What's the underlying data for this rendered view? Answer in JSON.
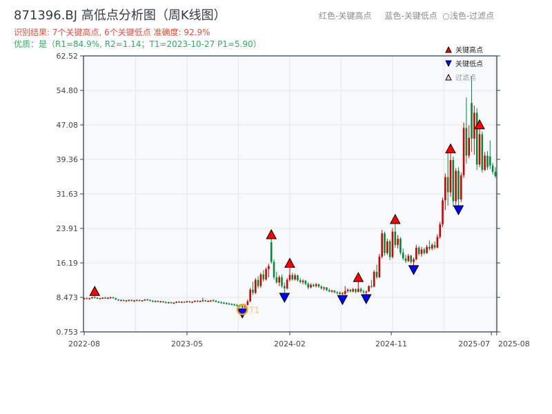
{
  "title": "871396.BJ 高低点分析图（周K线图）",
  "summary": "识别结果: 7个关键高点, 6个关键低点  准确度: 92.9%",
  "quality": "优质：是（R1=84.9%, R2=1.14；T1=2023-10-27 P1=5.90）",
  "top_legend": "红色-关键高点     蓝色-关键低点  ○浅色-过滤点",
  "colors": {
    "up": "#d40000",
    "down": "#008a3a",
    "high_marker": "#ff0000",
    "low_marker": "#0000ff",
    "t1_circle": "#f39c12",
    "grid": "#e3e6ea",
    "plot_bg": "#f7f9fb",
    "axis": "#2c3e50"
  },
  "chart_data": {
    "type": "candlestick",
    "interval": "weekly",
    "yticks": [
      "62.52",
      "54.80",
      "47.08",
      "39.36",
      "31.63",
      "23.91",
      "16.19",
      "8.473",
      "0.753"
    ],
    "ylim": [
      0.753,
      62.52
    ],
    "xticks": [
      {
        "label": "2022-08",
        "week": 0
      },
      {
        "label": "2023-05",
        "week": 39
      },
      {
        "label": "2024-02",
        "week": 78
      },
      {
        "label": "2024-11",
        "week": 116.5
      },
      {
        "label": "2025-07",
        "week": 154.5
      },
      {
        "label": "2025-08",
        "week": 156.5
      }
    ],
    "legend": [
      {
        "label": "关键高点",
        "marker": "triangle-up-red"
      },
      {
        "label": "关键低点",
        "marker": "triangle-down-blue"
      },
      {
        "label": "过滤点",
        "marker": "triangle-up-light"
      }
    ],
    "legend_position": "top-right",
    "t1_label": "T1",
    "t1_index": 60,
    "key_highs": [
      4,
      71,
      78,
      104,
      118,
      139,
      150
    ],
    "key_lows": [
      60,
      76,
      98,
      107,
      125,
      142
    ],
    "ohlc": [
      [
        8.1,
        8.4,
        8.0,
        8.3
      ],
      [
        8.3,
        8.5,
        8.1,
        8.2
      ],
      [
        8.2,
        8.4,
        8.0,
        8.3
      ],
      [
        8.3,
        8.6,
        8.2,
        8.5
      ],
      [
        8.5,
        8.9,
        8.3,
        8.4
      ],
      [
        8.4,
        8.5,
        8.1,
        8.2
      ],
      [
        8.2,
        8.4,
        8.1,
        8.3
      ],
      [
        8.3,
        8.5,
        8.2,
        8.4
      ],
      [
        8.4,
        8.6,
        8.2,
        8.3
      ],
      [
        8.3,
        8.5,
        8.1,
        8.4
      ],
      [
        8.4,
        8.6,
        8.2,
        8.5
      ],
      [
        8.5,
        8.6,
        8.2,
        8.3
      ],
      [
        8.3,
        8.4,
        7.9,
        8.0
      ],
      [
        8.0,
        8.1,
        7.7,
        7.8
      ],
      [
        7.8,
        8.0,
        7.6,
        7.9
      ],
      [
        7.9,
        8.0,
        7.6,
        7.7
      ],
      [
        7.7,
        7.9,
        7.5,
        7.8
      ],
      [
        7.8,
        8.0,
        7.6,
        7.9
      ],
      [
        7.9,
        8.0,
        7.6,
        7.7
      ],
      [
        7.7,
        7.9,
        7.5,
        7.8
      ],
      [
        7.8,
        8.0,
        7.7,
        7.9
      ],
      [
        7.9,
        8.0,
        7.6,
        7.7
      ],
      [
        7.7,
        7.9,
        7.6,
        7.8
      ],
      [
        7.8,
        8.1,
        7.7,
        8.0
      ],
      [
        8.0,
        8.2,
        7.8,
        7.9
      ],
      [
        7.9,
        8.0,
        7.6,
        7.7
      ],
      [
        7.7,
        7.9,
        7.5,
        7.6
      ],
      [
        7.6,
        7.8,
        7.4,
        7.7
      ],
      [
        7.7,
        7.8,
        7.4,
        7.5
      ],
      [
        7.5,
        7.7,
        7.3,
        7.6
      ],
      [
        7.6,
        7.7,
        7.3,
        7.4
      ],
      [
        7.4,
        7.6,
        7.2,
        7.3
      ],
      [
        7.3,
        7.5,
        7.1,
        7.4
      ],
      [
        7.4,
        7.5,
        7.1,
        7.2
      ],
      [
        7.2,
        7.4,
        7.0,
        7.3
      ],
      [
        7.3,
        7.6,
        7.2,
        7.5
      ],
      [
        7.5,
        7.7,
        7.3,
        7.4
      ],
      [
        7.4,
        7.6,
        7.2,
        7.5
      ],
      [
        7.5,
        7.6,
        7.3,
        7.4
      ],
      [
        7.4,
        7.7,
        7.3,
        7.6
      ],
      [
        7.6,
        7.7,
        7.3,
        7.4
      ],
      [
        7.4,
        7.6,
        7.2,
        7.5
      ],
      [
        7.5,
        7.8,
        7.4,
        7.7
      ],
      [
        7.7,
        7.9,
        7.5,
        7.6
      ],
      [
        7.6,
        7.8,
        7.4,
        7.7
      ],
      [
        7.7,
        8.4,
        7.6,
        7.8
      ],
      [
        7.8,
        7.9,
        7.5,
        7.6
      ],
      [
        7.6,
        7.8,
        7.4,
        7.7
      ],
      [
        7.7,
        7.9,
        7.5,
        7.8
      ],
      [
        7.8,
        8.1,
        7.6,
        7.7
      ],
      [
        7.7,
        7.9,
        7.4,
        7.5
      ],
      [
        7.5,
        7.7,
        7.2,
        7.4
      ],
      [
        7.4,
        7.6,
        7.1,
        7.3
      ],
      [
        7.3,
        7.5,
        7.0,
        7.2
      ],
      [
        7.2,
        7.4,
        6.9,
        7.1
      ],
      [
        7.1,
        7.3,
        6.8,
        7.0
      ],
      [
        7.0,
        7.2,
        6.7,
        6.9
      ],
      [
        6.9,
        7.1,
        6.6,
        6.8
      ],
      [
        6.8,
        7.0,
        6.4,
        6.6
      ],
      [
        6.6,
        6.9,
        6.2,
        6.5
      ],
      [
        6.5,
        6.7,
        5.9,
        6.2
      ],
      [
        6.2,
        7.0,
        6.1,
        6.8
      ],
      [
        6.8,
        8.0,
        6.6,
        7.6
      ],
      [
        7.6,
        10.6,
        7.4,
        10.2
      ],
      [
        10.2,
        12.0,
        9.0,
        9.5
      ],
      [
        9.5,
        12.8,
        9.2,
        12.4
      ],
      [
        12.4,
        13.2,
        10.5,
        11.0
      ],
      [
        11.0,
        14.0,
        10.6,
        13.6
      ],
      [
        13.6,
        14.6,
        12.0,
        12.5
      ],
      [
        12.5,
        15.2,
        12.2,
        14.8
      ],
      [
        14.8,
        16.0,
        13.0,
        15.5
      ],
      [
        20.8,
        21.6,
        16.0,
        16.4
      ],
      [
        16.4,
        17.0,
        12.5,
        13.0
      ],
      [
        13.0,
        14.2,
        11.5,
        11.8
      ],
      [
        11.8,
        13.4,
        11.0,
        13.0
      ],
      [
        13.0,
        13.6,
        10.6,
        11.0
      ],
      [
        11.0,
        11.8,
        9.4,
        10.5
      ],
      [
        10.5,
        12.8,
        10.2,
        12.4
      ],
      [
        12.4,
        15.2,
        12.0,
        13.5
      ],
      [
        13.5,
        14.0,
        12.2,
        12.5
      ],
      [
        12.5,
        13.8,
        12.2,
        13.4
      ],
      [
        13.4,
        13.6,
        12.0,
        12.3
      ],
      [
        12.3,
        12.8,
        11.6,
        11.9
      ],
      [
        11.9,
        12.5,
        11.4,
        12.2
      ],
      [
        12.2,
        12.4,
        11.2,
        11.5
      ],
      [
        11.5,
        11.9,
        10.3,
        10.7
      ],
      [
        10.7,
        11.6,
        10.5,
        11.3
      ],
      [
        11.3,
        11.6,
        10.8,
        11.0
      ],
      [
        11.0,
        11.7,
        10.7,
        11.4
      ],
      [
        11.4,
        11.6,
        10.6,
        10.9
      ],
      [
        10.9,
        11.2,
        10.2,
        10.5
      ],
      [
        10.5,
        10.9,
        10.0,
        10.7
      ],
      [
        10.7,
        10.8,
        9.9,
        10.1
      ],
      [
        10.1,
        10.5,
        9.6,
        9.8
      ],
      [
        9.8,
        10.2,
        9.5,
        10.0
      ],
      [
        10.0,
        10.1,
        9.4,
        9.6
      ],
      [
        9.6,
        9.9,
        9.2,
        9.4
      ],
      [
        9.4,
        9.8,
        9.1,
        9.5
      ],
      [
        9.5,
        9.7,
        8.9,
        9.2
      ],
      [
        9.2,
        11.0,
        9.1,
        9.9
      ],
      [
        9.9,
        10.5,
        9.5,
        10.2
      ],
      [
        10.2,
        10.4,
        9.6,
        9.8
      ],
      [
        9.8,
        10.6,
        9.6,
        10.3
      ],
      [
        10.3,
        10.5,
        9.4,
        9.7
      ],
      [
        9.7,
        12.0,
        9.6,
        10.4
      ],
      [
        10.4,
        10.7,
        9.5,
        9.8
      ],
      [
        9.8,
        10.2,
        9.3,
        9.6
      ],
      [
        9.6,
        10.0,
        9.1,
        9.8
      ],
      [
        9.8,
        11.2,
        9.7,
        11.0
      ],
      [
        11.0,
        12.4,
        10.6,
        10.9
      ],
      [
        10.9,
        14.6,
        10.7,
        14.2
      ],
      [
        14.2,
        15.8,
        12.6,
        13.0
      ],
      [
        13.0,
        18.2,
        12.8,
        17.6
      ],
      [
        17.6,
        23.6,
        17.2,
        22.8
      ],
      [
        22.8,
        23.2,
        17.8,
        18.4
      ],
      [
        18.4,
        21.6,
        18.0,
        21.0
      ],
      [
        21.0,
        21.4,
        16.8,
        17.5
      ],
      [
        17.5,
        24.0,
        17.2,
        23.2
      ],
      [
        23.2,
        25.0,
        19.6,
        20.2
      ],
      [
        20.2,
        22.4,
        19.4,
        21.6
      ],
      [
        21.6,
        22.0,
        18.0,
        18.5
      ],
      [
        18.5,
        19.4,
        16.8,
        17.2
      ],
      [
        17.2,
        18.0,
        16.2,
        16.6
      ],
      [
        16.6,
        18.2,
        16.4,
        17.8
      ],
      [
        17.8,
        18.0,
        16.0,
        16.4
      ],
      [
        16.4,
        17.4,
        15.6,
        17.0
      ],
      [
        17.0,
        20.2,
        16.8,
        19.6
      ],
      [
        19.6,
        20.0,
        17.8,
        18.2
      ],
      [
        18.2,
        19.8,
        17.6,
        19.2
      ],
      [
        19.2,
        19.6,
        18.0,
        18.4
      ],
      [
        18.4,
        20.2,
        18.2,
        19.8
      ],
      [
        19.8,
        21.2,
        19.0,
        19.4
      ],
      [
        19.4,
        20.6,
        19.0,
        20.2
      ],
      [
        20.2,
        21.0,
        19.2,
        19.6
      ],
      [
        19.6,
        22.6,
        19.4,
        22.0
      ],
      [
        22.0,
        25.4,
        21.6,
        24.8
      ],
      [
        24.8,
        30.8,
        24.2,
        30.2
      ],
      [
        30.2,
        36.2,
        28.0,
        35.4
      ],
      [
        35.4,
        41.6,
        29.0,
        32.0
      ],
      [
        32.0,
        40.8,
        31.0,
        39.2
      ],
      [
        39.2,
        40.0,
        28.8,
        30.0
      ],
      [
        30.0,
        37.4,
        29.2,
        36.8
      ],
      [
        36.8,
        37.6,
        29.0,
        30.4
      ],
      [
        30.4,
        36.4,
        29.8,
        35.8
      ],
      [
        35.8,
        47.6,
        35.2,
        46.4
      ],
      [
        46.4,
        53.2,
        38.4,
        40.2
      ],
      [
        40.2,
        47.0,
        39.6,
        44.2
      ],
      [
        52.0,
        58.0,
        41.0,
        44.0
      ],
      [
        44.0,
        51.4,
        40.4,
        49.8
      ],
      [
        49.8,
        50.8,
        37.0,
        38.2
      ],
      [
        38.2,
        46.2,
        37.6,
        45.0
      ],
      [
        45.0,
        45.6,
        36.4,
        37.0
      ],
      [
        37.0,
        41.0,
        36.8,
        40.2
      ],
      [
        40.2,
        41.2,
        37.0,
        37.6
      ],
      [
        40.0,
        43.6,
        37.2,
        38.0
      ],
      [
        38.0,
        38.6,
        36.0,
        36.6
      ],
      [
        36.6,
        37.6,
        35.2,
        35.6
      ]
    ]
  }
}
